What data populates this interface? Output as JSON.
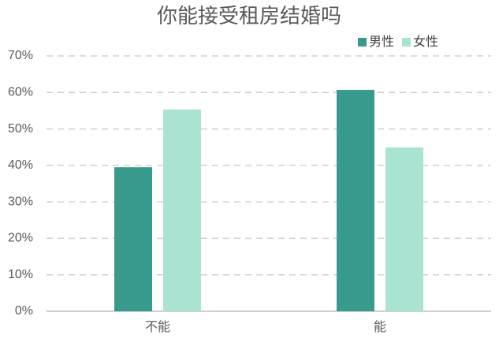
{
  "chart_data": {
    "type": "bar",
    "title": "你能接受租房结婚吗",
    "categories": [
      "不能",
      "能"
    ],
    "series": [
      {
        "name": "男性",
        "color": "#38998d",
        "values": [
          39.5,
          60.7
        ]
      },
      {
        "name": "女性",
        "color": "#a8e4d1",
        "values": [
          55.3,
          44.9
        ]
      }
    ],
    "ylim": [
      0,
      70
    ],
    "yticks": [
      {
        "value": 0,
        "label": "0%"
      },
      {
        "value": 10,
        "label": "10%"
      },
      {
        "value": 20,
        "label": "20%"
      },
      {
        "value": 30,
        "label": "30%"
      },
      {
        "value": 40,
        "label": "40%"
      },
      {
        "value": 50,
        "label": "50%"
      },
      {
        "value": 60,
        "label": "60%"
      },
      {
        "value": 70,
        "label": "70%"
      }
    ],
    "grid": true,
    "legend": "top-right"
  }
}
